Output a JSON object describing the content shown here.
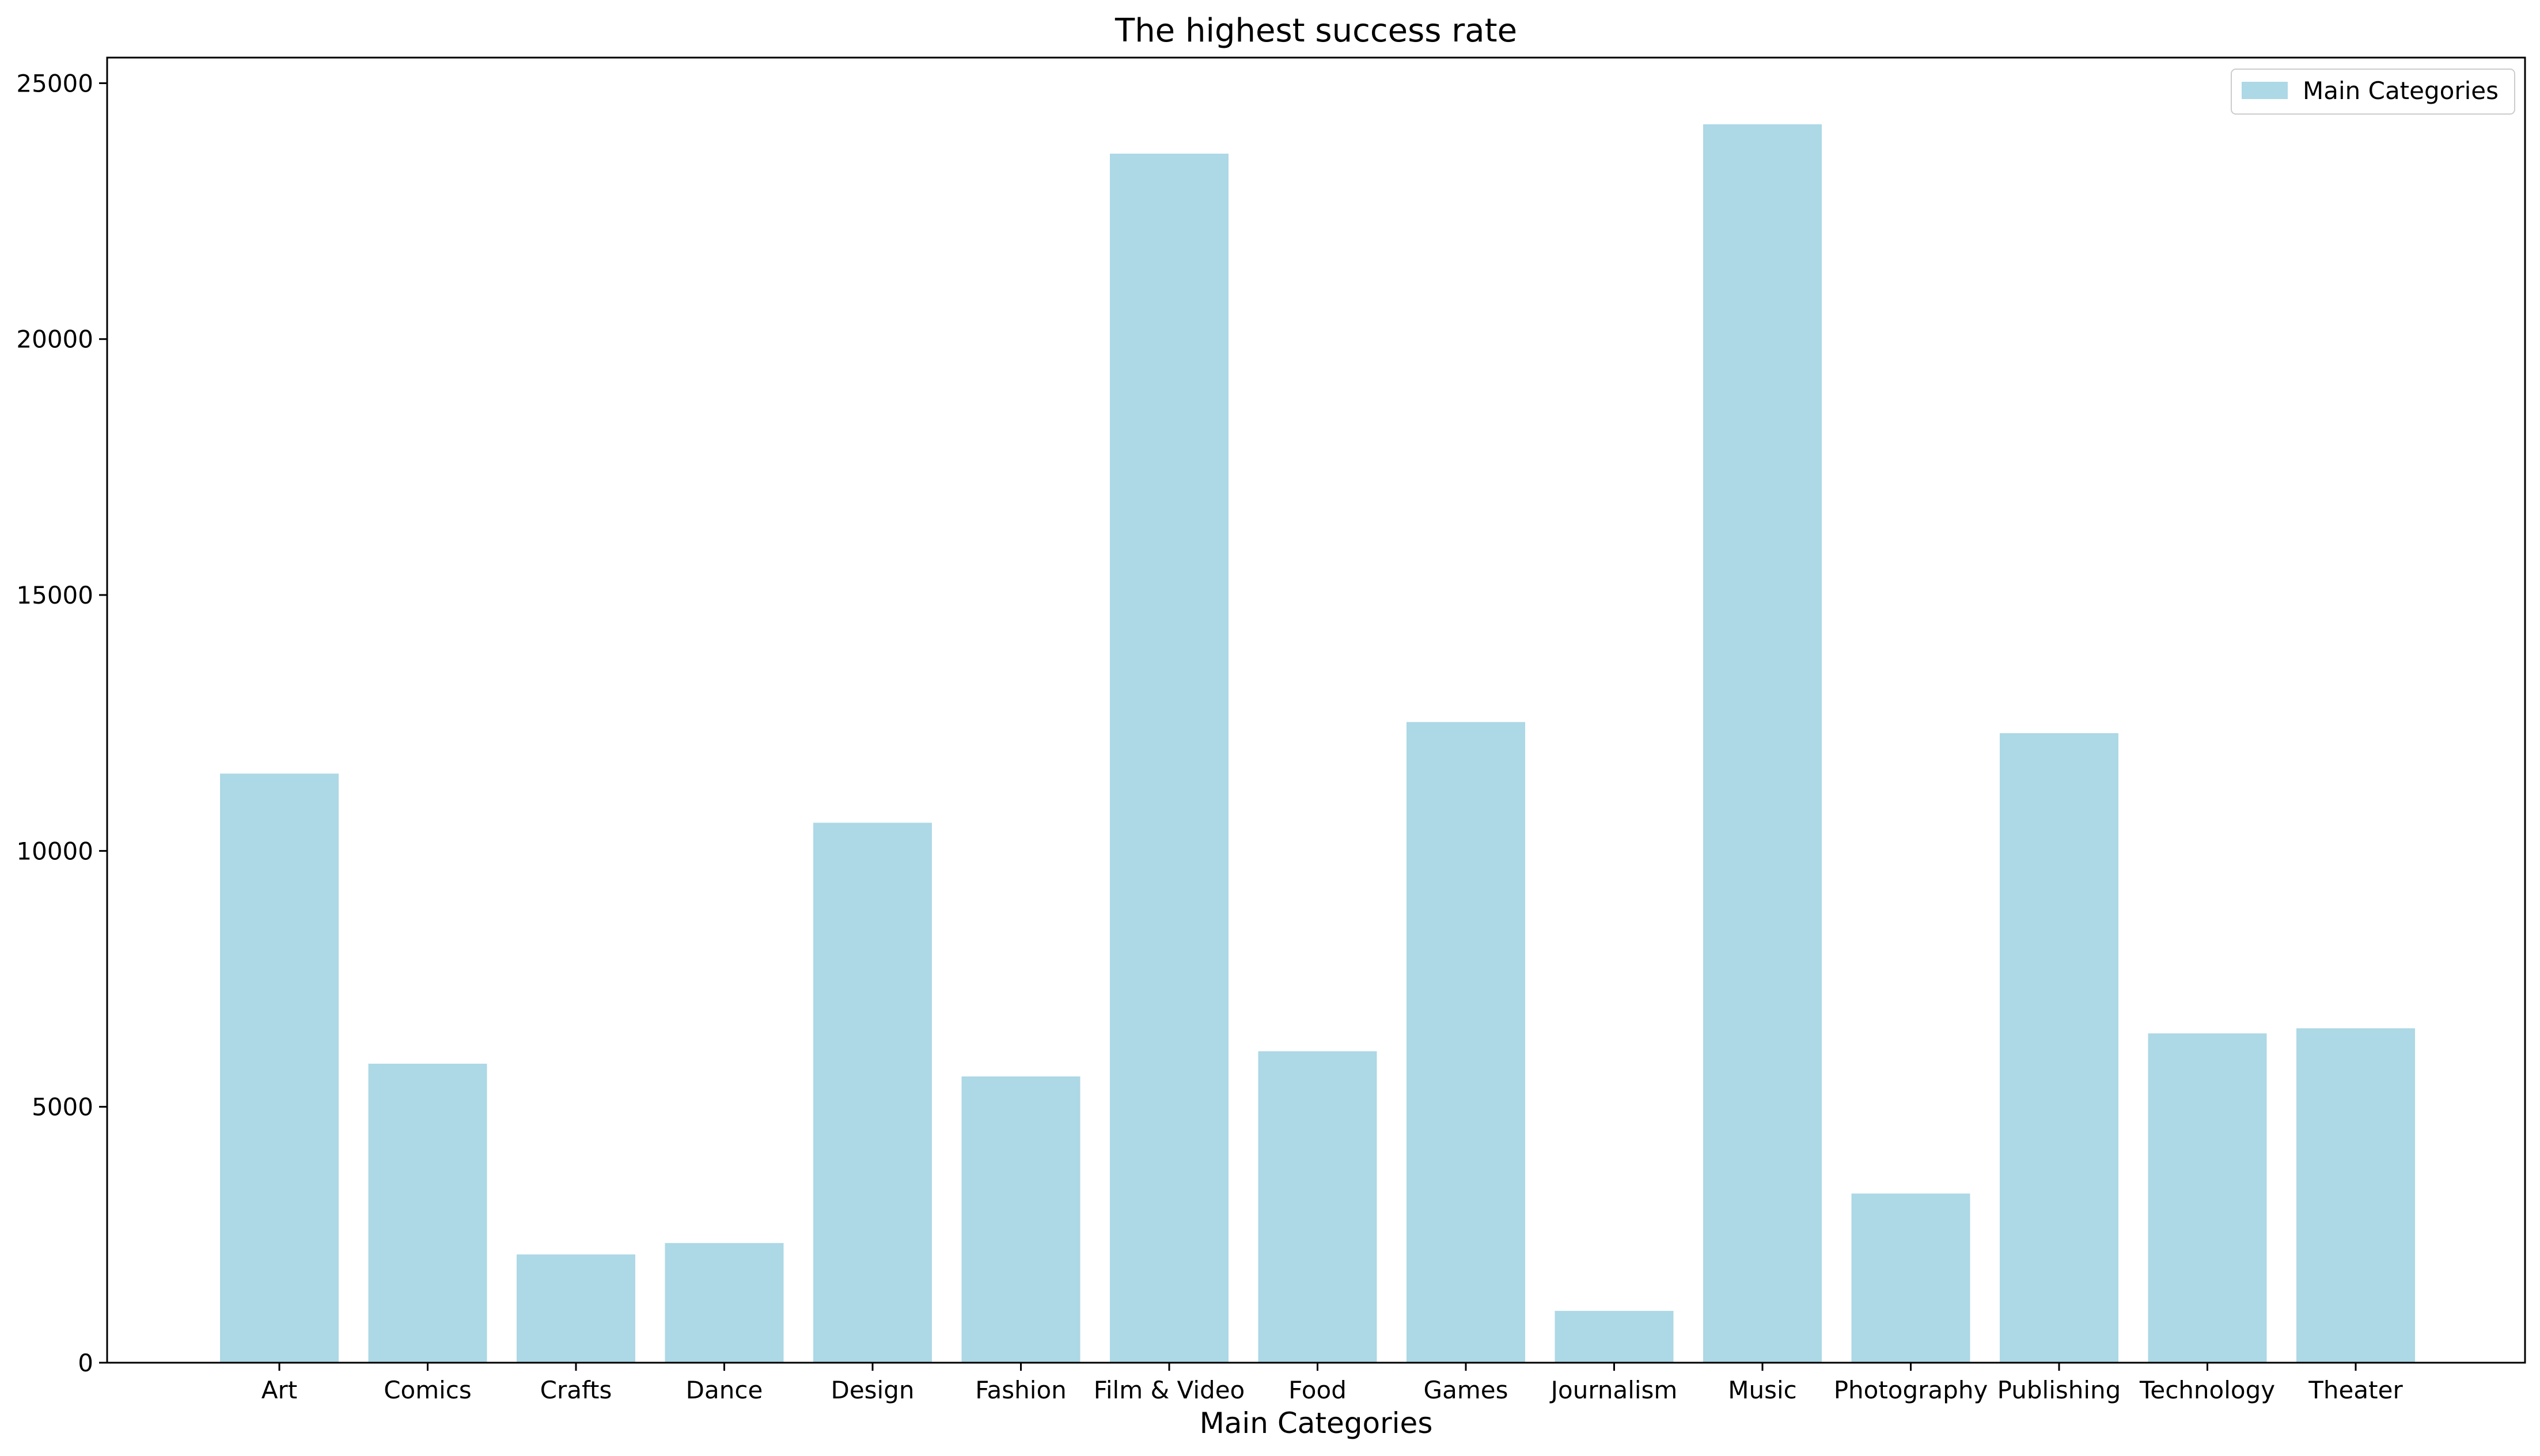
{
  "chart_data": {
    "type": "bar",
    "title": "The highest success rate",
    "xlabel": "Main Categories",
    "ylabel": "",
    "categories": [
      "Art",
      "Comics",
      "Crafts",
      "Dance",
      "Design",
      "Fashion",
      "Film & Video",
      "Food",
      "Games",
      "Journalism",
      "Music",
      "Photography",
      "Publishing",
      "Technology",
      "Theater"
    ],
    "series": [
      {
        "name": "Main Categories",
        "values": [
          11510,
          5842,
          2115,
          2338,
          10550,
          5593,
          23623,
          6085,
          12518,
          1012,
          24197,
          3305,
          12300,
          6434,
          6534
        ]
      }
    ],
    "ylim": [
      0,
      25500
    ],
    "yticks": [
      0,
      5000,
      10000,
      15000,
      20000,
      25000
    ],
    "grid": false,
    "legend_position": "top-right",
    "bar_color": "#add8e6"
  }
}
